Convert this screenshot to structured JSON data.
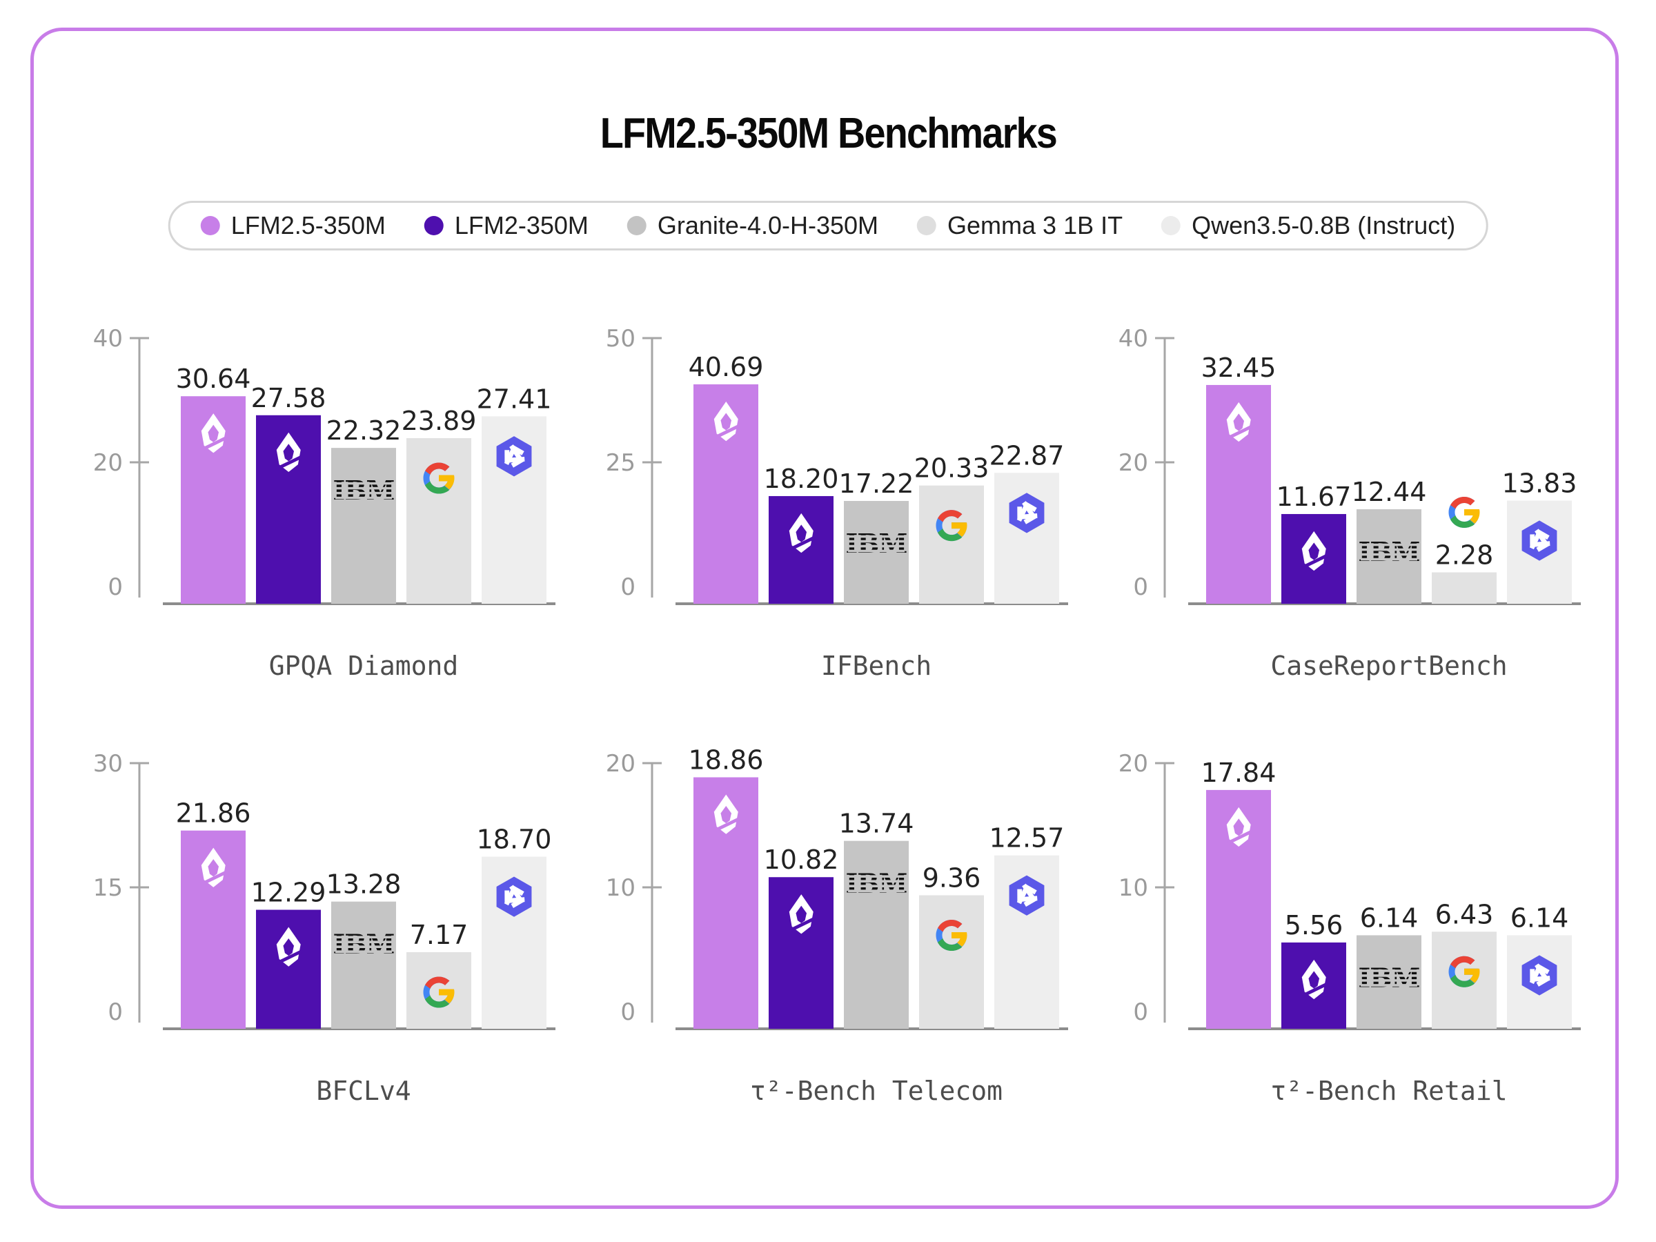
{
  "title": "LFM2.5-350M Benchmarks",
  "legend": {
    "items": [
      {
        "label": "LFM2.5-350M",
        "color": "#c77fe8"
      },
      {
        "label": "LFM2-350M",
        "color": "#4e0fae"
      },
      {
        "label": "Granite-4.0-H-350M",
        "color": "#c3c3c3"
      },
      {
        "label": "Gemma 3 1B IT",
        "color": "#dedede"
      },
      {
        "label": "Qwen3.5-0.8B (Instruct)",
        "color": "#ececec"
      }
    ]
  },
  "models": [
    {
      "name": "LFM2.5-350M",
      "color": "#c77fe8",
      "logo": "liquid",
      "logo_name": "liquid-drop-logo-icon"
    },
    {
      "name": "LFM2-350M",
      "color": "#4e0fae",
      "logo": "liquid",
      "logo_name": "liquid-drop-logo-icon"
    },
    {
      "name": "Granite-4.0-H-350M",
      "color": "#c5c5c5",
      "logo": "ibm",
      "logo_name": "ibm-logo-icon"
    },
    {
      "name": "Gemma 3 1B IT",
      "color": "#e2e2e2",
      "logo": "google",
      "logo_name": "google-g-logo-icon"
    },
    {
      "name": "Qwen3.5-0.8B (Instruct)",
      "color": "#eeeeee",
      "logo": "qwen",
      "logo_name": "qwen-logo-icon"
    }
  ],
  "chart_data": [
    {
      "type": "bar",
      "title": "GPQA Diamond",
      "ymax": 40,
      "yticks": [
        0,
        20,
        40
      ],
      "values": [
        30.64,
        27.58,
        22.32,
        23.89,
        27.41
      ]
    },
    {
      "type": "bar",
      "title": "IFBench",
      "ymax": 50,
      "yticks": [
        0,
        25,
        50
      ],
      "values": [
        40.69,
        18.2,
        17.22,
        20.33,
        22.87
      ]
    },
    {
      "type": "bar",
      "title": "CaseReportBench",
      "ymax": 40,
      "yticks": [
        0,
        20,
        40
      ],
      "values": [
        32.45,
        11.67,
        12.44,
        2.28,
        13.83
      ]
    },
    {
      "type": "bar",
      "title": "BFCLv4",
      "ymax": 30,
      "yticks": [
        0,
        15,
        30
      ],
      "values": [
        21.86,
        12.29,
        13.28,
        7.17,
        18.7
      ]
    },
    {
      "type": "bar",
      "title": "τ²-Bench Telecom",
      "ymax": 20,
      "yticks": [
        0,
        10,
        20
      ],
      "values": [
        18.86,
        10.82,
        13.74,
        9.36,
        12.57
      ]
    },
    {
      "type": "bar",
      "title": "τ²-Bench Retail",
      "ymax": 20,
      "yticks": [
        0,
        10,
        20
      ],
      "values": [
        17.84,
        5.56,
        6.14,
        6.43,
        6.14
      ]
    }
  ],
  "colors": {
    "frame": "#c87ce8",
    "axis": "#a6a6a6",
    "baseline": "#8c8c8c",
    "tick_label": "#9a9a9a",
    "value_label": "#222222",
    "chart_title": "#4d4d4d",
    "legend_border": "#d6d6d6",
    "legend_text": "#1f1f1f",
    "ibm_text": "#111111",
    "qwen_indigo": "#5b58e8",
    "google_blue": "#4285F4",
    "google_red": "#EA4335",
    "google_yellow": "#FBBC05",
    "google_green": "#34A853",
    "logo_white": "#ffffff"
  }
}
